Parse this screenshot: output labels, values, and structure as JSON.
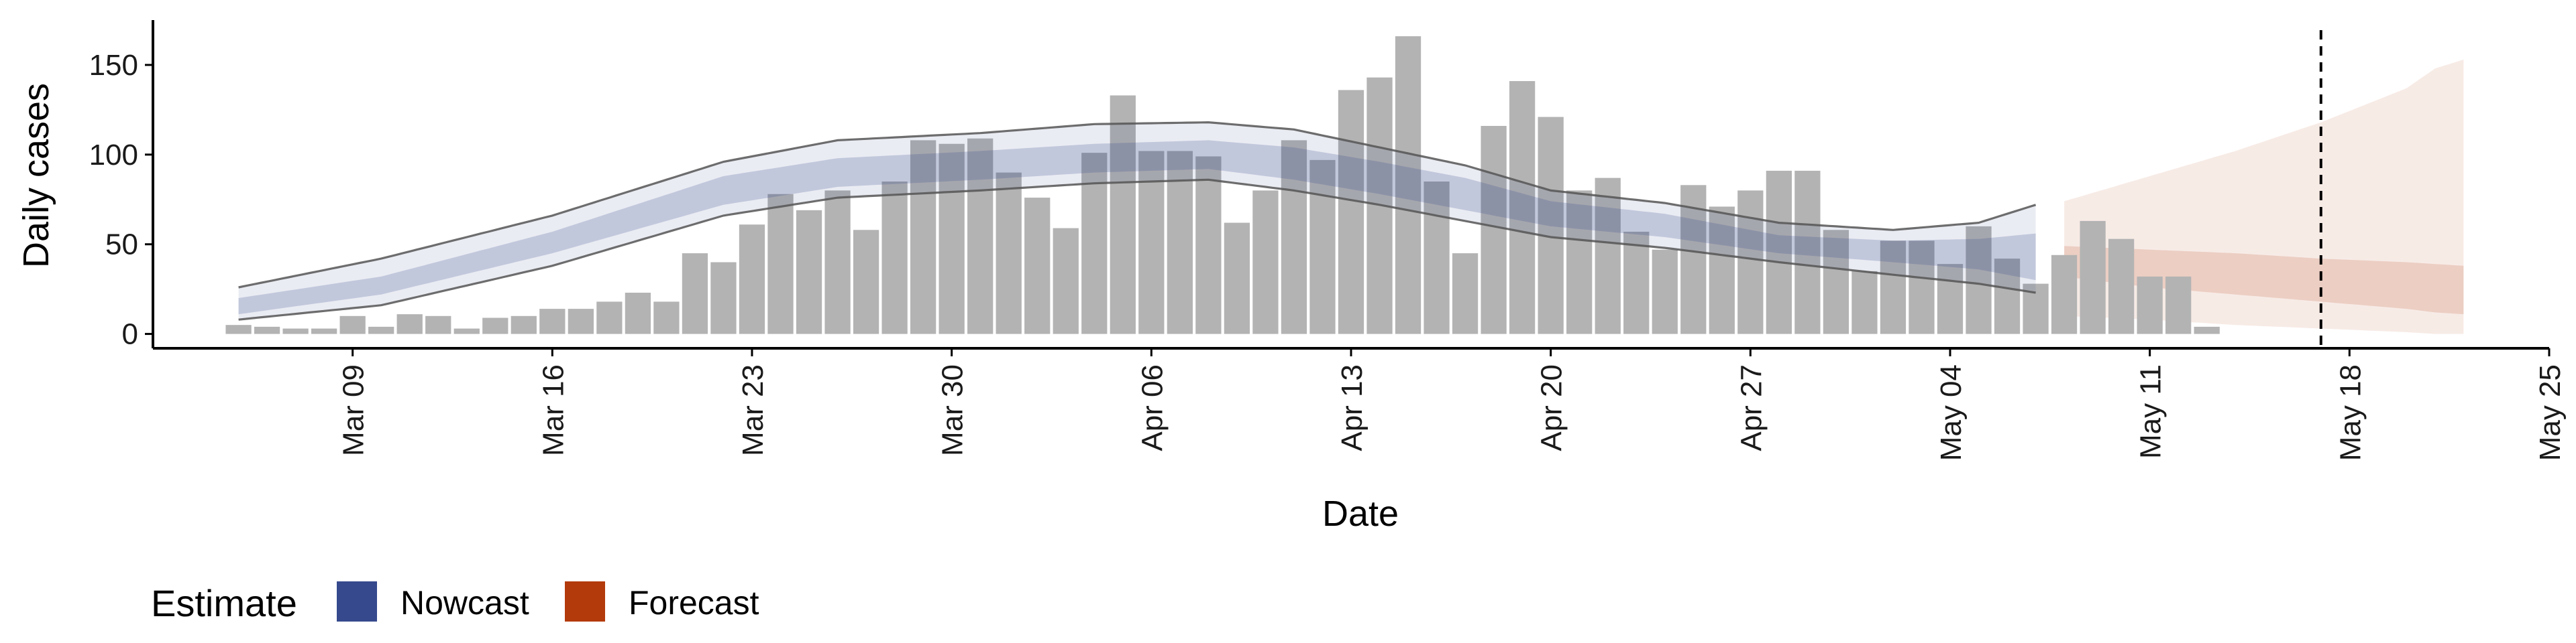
{
  "chart_data": {
    "type": "bar",
    "xlabel": "Date",
    "ylabel": "Daily cases",
    "ylim": [
      -8,
      175
    ],
    "y_ticks": [
      0,
      50,
      100,
      150
    ],
    "x_range": [
      "2020-03-02",
      "2020-05-25"
    ],
    "x_ticks": [
      {
        "date": "2020-03-09",
        "label": "Mar 09"
      },
      {
        "date": "2020-03-16",
        "label": "Mar 16"
      },
      {
        "date": "2020-03-23",
        "label": "Mar 23"
      },
      {
        "date": "2020-03-30",
        "label": "Mar 30"
      },
      {
        "date": "2020-04-06",
        "label": "Apr 06"
      },
      {
        "date": "2020-04-13",
        "label": "Apr 13"
      },
      {
        "date": "2020-04-20",
        "label": "Apr 20"
      },
      {
        "date": "2020-04-27",
        "label": "Apr 27"
      },
      {
        "date": "2020-05-04",
        "label": "May 04"
      },
      {
        "date": "2020-05-11",
        "label": "May 11"
      },
      {
        "date": "2020-05-18",
        "label": "May 18"
      },
      {
        "date": "2020-05-25",
        "label": "May 25"
      }
    ],
    "bars": {
      "start_date": "2020-03-05",
      "color": "#b3b3b3",
      "values": [
        5,
        4,
        3,
        3,
        10,
        4,
        11,
        10,
        3,
        9,
        10,
        14,
        14,
        18,
        23,
        18,
        45,
        40,
        61,
        78,
        69,
        80,
        58,
        85,
        108,
        106,
        109,
        90,
        76,
        59,
        101,
        133,
        102,
        102,
        99,
        62,
        80,
        108,
        97,
        136,
        143,
        166,
        85,
        45,
        116,
        141,
        121,
        80,
        87,
        57,
        47,
        83,
        71,
        80,
        91,
        91,
        58,
        35,
        52,
        52,
        39,
        60,
        42,
        28,
        44,
        63,
        53,
        32,
        32,
        4
      ]
    },
    "series": [
      {
        "name": "Nowcast",
        "color": "#35498c",
        "start_date": "2020-03-05",
        "end_date": "2020-05-07",
        "knots": [
          {
            "date": "2020-03-05",
            "outer": [
              8,
              26
            ],
            "inner": [
              11,
              20
            ],
            "line_lo": 8,
            "line_hi": 26
          },
          {
            "date": "2020-03-10",
            "outer": [
              16,
              42
            ],
            "inner": [
              22,
              32
            ],
            "line_lo": 16,
            "line_hi": 42
          },
          {
            "date": "2020-03-16",
            "outer": [
              38,
              66
            ],
            "inner": [
              45,
              57
            ],
            "line_lo": 38,
            "line_hi": 66
          },
          {
            "date": "2020-03-22",
            "outer": [
              66,
              96
            ],
            "inner": [
              72,
              88
            ],
            "line_lo": 66,
            "line_hi": 96
          },
          {
            "date": "2020-03-26",
            "outer": [
              76,
              108
            ],
            "inner": [
              82,
              98
            ],
            "line_lo": 76,
            "line_hi": 108
          },
          {
            "date": "2020-03-31",
            "outer": [
              80,
              112
            ],
            "inner": [
              86,
              102
            ],
            "line_lo": 80,
            "line_hi": 112
          },
          {
            "date": "2020-04-04",
            "outer": [
              84,
              117
            ],
            "inner": [
              90,
              106
            ],
            "line_lo": 84,
            "line_hi": 117
          },
          {
            "date": "2020-04-08",
            "outer": [
              86,
              118
            ],
            "inner": [
              92,
              108
            ],
            "line_lo": 86,
            "line_hi": 118
          },
          {
            "date": "2020-04-11",
            "outer": [
              80,
              114
            ],
            "inner": [
              86,
              104
            ],
            "line_lo": 80,
            "line_hi": 114
          },
          {
            "date": "2020-04-14",
            "outer": [
              72,
              104
            ],
            "inner": [
              78,
              96
            ],
            "line_lo": 72,
            "line_hi": 104
          },
          {
            "date": "2020-04-17",
            "outer": [
              63,
              94
            ],
            "inner": [
              69,
              87
            ],
            "line_lo": 63,
            "line_hi": 94
          },
          {
            "date": "2020-04-20",
            "outer": [
              54,
              80
            ],
            "inner": [
              60,
              74
            ],
            "line_lo": 54,
            "line_hi": 80
          },
          {
            "date": "2020-04-24",
            "outer": [
              48,
              73
            ],
            "inner": [
              54,
              67
            ],
            "line_lo": 48,
            "line_hi": 73
          },
          {
            "date": "2020-04-28",
            "outer": [
              40,
              62
            ],
            "inner": [
              45,
              55
            ],
            "line_lo": 40,
            "line_hi": 62
          },
          {
            "date": "2020-05-02",
            "outer": [
              33,
              58
            ],
            "inner": [
              40,
              52
            ],
            "line_lo": 33,
            "line_hi": 58
          },
          {
            "date": "2020-05-05",
            "outer": [
              28,
              62
            ],
            "inner": [
              36,
              53
            ],
            "line_lo": 28,
            "line_hi": 62
          },
          {
            "date": "2020-05-07",
            "outer": [
              23,
              72
            ],
            "inner": [
              30,
              56
            ],
            "line_lo": 23,
            "line_hi": 72
          }
        ]
      },
      {
        "name": "Forecast",
        "color": "#b33a0b",
        "start_date": "2020-05-08",
        "end_date": "2020-05-22",
        "knots": [
          {
            "date": "2020-05-08",
            "outer": [
              10,
              74
            ],
            "inner": [
              32,
              49
            ]
          },
          {
            "date": "2020-05-11",
            "outer": [
              8,
              88
            ],
            "inner": [
              26,
              47
            ]
          },
          {
            "date": "2020-05-14",
            "outer": [
              5,
              102
            ],
            "inner": [
              22,
              45
            ]
          },
          {
            "date": "2020-05-17",
            "outer": [
              3,
              118
            ],
            "inner": [
              18,
              42
            ]
          },
          {
            "date": "2020-05-20",
            "outer": [
              1,
              137
            ],
            "inner": [
              14,
              40
            ]
          },
          {
            "date": "2020-05-21",
            "outer": [
              0,
              148
            ],
            "inner": [
              12,
              39
            ]
          },
          {
            "date": "2020-05-22",
            "outer": [
              0,
              153
            ],
            "inner": [
              11,
              38
            ]
          }
        ]
      }
    ],
    "vline": {
      "date": "2020-05-17",
      "style": "dashed"
    },
    "grid": false,
    "legend": {
      "placement": "bottom-left",
      "title": "Estimate",
      "items": [
        {
          "label": "Nowcast",
          "color": "#35498c"
        },
        {
          "label": "Forecast",
          "color": "#b33a0b"
        }
      ]
    }
  }
}
